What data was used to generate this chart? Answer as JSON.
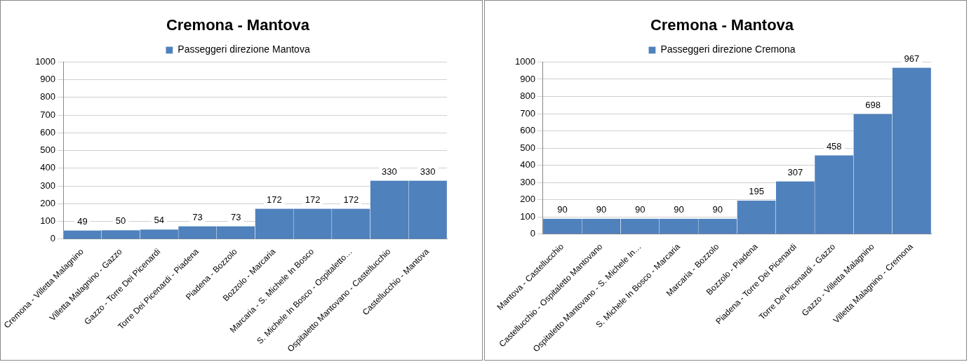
{
  "chart_data": [
    {
      "type": "bar",
      "title": "Cremona - Mantova",
      "categories": [
        "Cremona - Villetta Malagnino",
        "Villetta Malagnino - Gazzo",
        "Gazzo - Torre Dei Picenardi",
        "Torre Dei Picenardi - Piadena",
        "Piadena - Bozzolo",
        "Bozzolo - Marcaria",
        "Marcaria - S. Michele In Bosco",
        "S. Michele In Bosco - Ospitaletto…",
        "Ospitaletto Mantovano - Castellucchio",
        "Castellucchio - Mantova"
      ],
      "series": [
        {
          "name": "Passeggeri direzione Mantova",
          "color": "#4f81bd",
          "values": [
            49,
            50,
            54,
            73,
            73,
            172,
            172,
            172,
            330,
            330
          ]
        }
      ],
      "ylim": [
        0,
        1000
      ],
      "yticks": [
        0,
        100,
        200,
        300,
        400,
        500,
        600,
        700,
        800,
        900,
        1000
      ],
      "grid": "y",
      "legend": "top",
      "data_labels": true
    },
    {
      "type": "bar",
      "title": "Cremona - Mantova",
      "categories": [
        "Mantova - Castellucchio",
        "Castellucchio - Ospitaletto Mantovano",
        "Ospitaletto Mantovano - S. Michele In…",
        "S. Michele In Bosco - Marcaria",
        "Marcaria - Bozzolo",
        "Bozzolo - Piadena",
        "Piadena - Torre Dei Picenardi",
        "Torre Dei Picenardi - Gazzo",
        "Gazzo - Villetta Malagnino",
        "Villetta Malagnino - Cremona"
      ],
      "series": [
        {
          "name": "Passeggeri direzione Cremona",
          "color": "#4f81bd",
          "values": [
            90,
            90,
            90,
            90,
            90,
            195,
            307,
            458,
            698,
            967
          ]
        }
      ],
      "ylim": [
        0,
        1000
      ],
      "yticks": [
        0,
        100,
        200,
        300,
        400,
        500,
        600,
        700,
        800,
        900,
        1000
      ],
      "grid": "y",
      "legend": "top",
      "data_labels": true
    }
  ]
}
